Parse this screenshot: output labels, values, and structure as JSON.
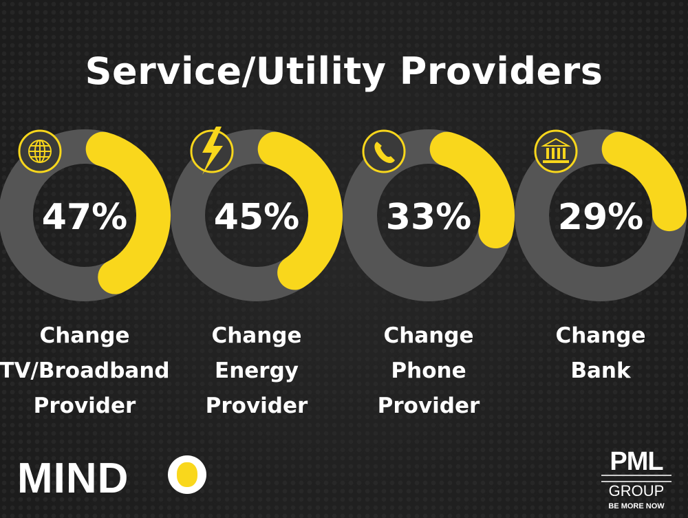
{
  "title": "Service/Utility Providers",
  "colors": {
    "background": "#1e1e1e",
    "track": "#555555",
    "accent": "#f9d71c"
  },
  "chart_data": {
    "type": "donut",
    "title": "Service/Utility Providers",
    "categories": [
      "Change TV/Broadband Provider",
      "Change Energy Provider",
      "Change Phone Provider",
      "Change Bank"
    ],
    "values": [
      47,
      45,
      33,
      29
    ],
    "value_labels": [
      "47%",
      "45%",
      "33%",
      "29%"
    ],
    "label_lines": [
      [
        "Change",
        "TV/Broadband",
        "Provider"
      ],
      [
        "Change",
        "Energy",
        "Provider"
      ],
      [
        "Change",
        "Phone",
        "Provider"
      ],
      [
        "Change",
        "Bank"
      ]
    ],
    "icons": [
      "globe-icon",
      "lightning-icon",
      "phone-icon",
      "bank-icon"
    ],
    "unit": "%",
    "max": 100
  },
  "footer": {
    "left_logo": "MIND",
    "right_logo": {
      "name": "PML",
      "sub": "GROUP",
      "tagline": "BE MORE NOW"
    }
  }
}
